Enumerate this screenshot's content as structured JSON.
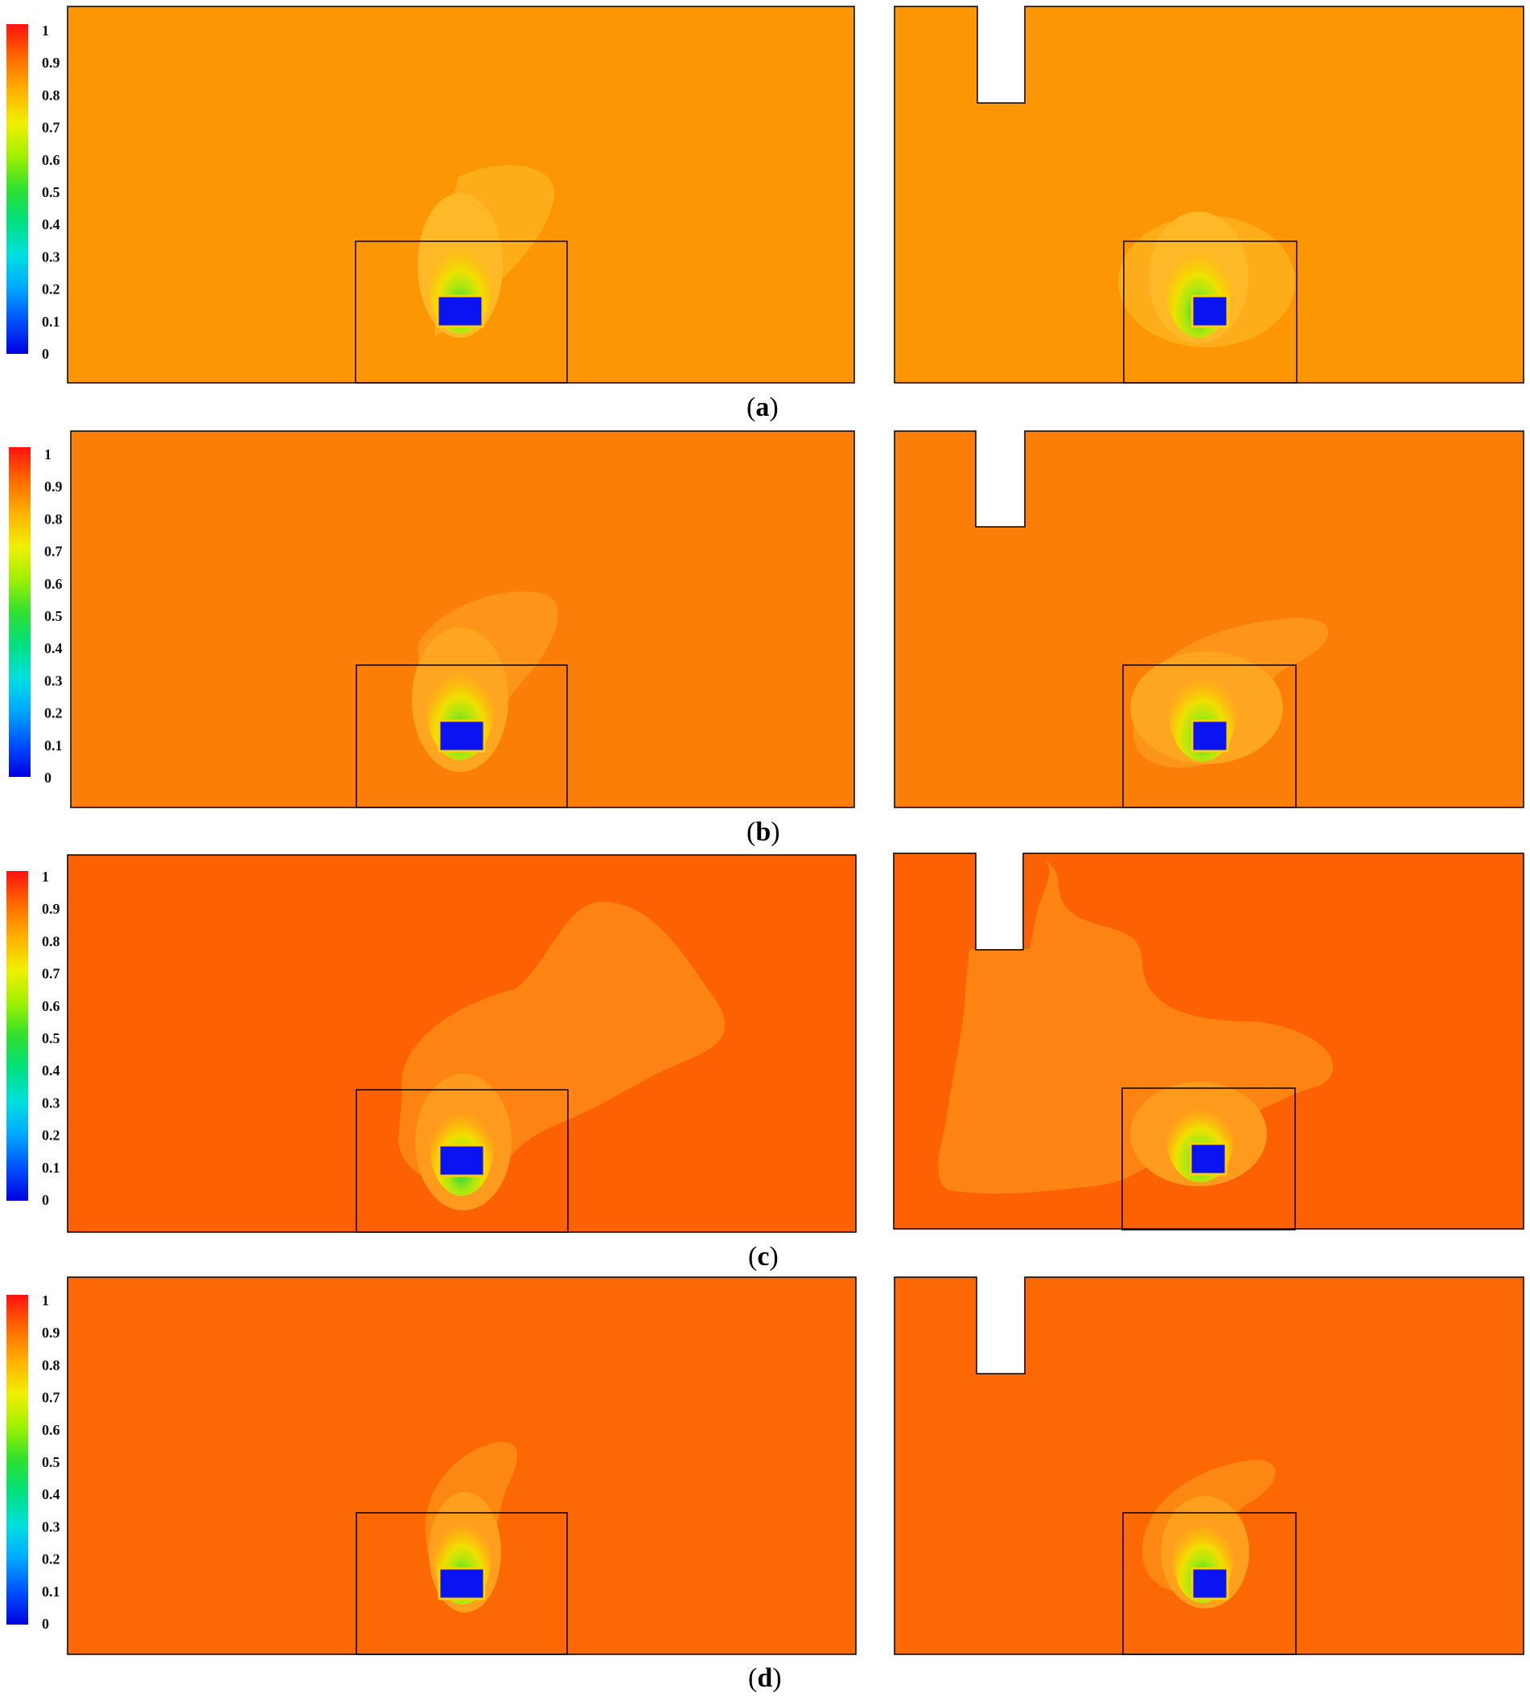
{
  "colorbar": {
    "ticks": [
      "1",
      "0.9",
      "0.8",
      "0.7",
      "0.6",
      "0.5",
      "0.4",
      "0.3",
      "0.2",
      "0.1",
      "0"
    ],
    "colors": [
      "#ff1a1a",
      "#ff8000",
      "#ffd000",
      "#c8f000",
      "#30e030",
      "#00e0a0",
      "#00e0ff",
      "#00a0ff",
      "#0040ff",
      "#0000e0"
    ]
  },
  "rows": [
    {
      "label_open": "(",
      "label_letter": "a",
      "label_close": ")",
      "background": "#fd9604",
      "plume": "#fdac1a",
      "plume2": "#feb828"
    },
    {
      "label_open": "(",
      "label_letter": "b",
      "label_close": ")",
      "background": "#fb7e08",
      "plume": "#fd951a",
      "plume2": "#fea622"
    },
    {
      "label_open": "(",
      "label_letter": "c",
      "label_close": ")",
      "background": "#fc6203",
      "plume": "#fd8413",
      "plume2": "#fe9a1e"
    },
    {
      "label_open": "(",
      "label_letter": "d",
      "label_close": ")",
      "background": "#fc6803",
      "plume": "#fd8713",
      "plume2": "#fea01e"
    }
  ],
  "source_color": "#0a14f0"
}
